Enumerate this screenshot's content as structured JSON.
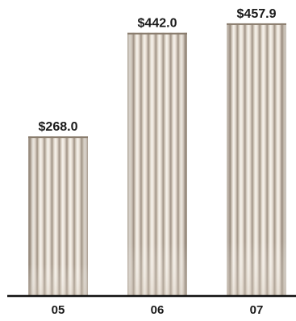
{
  "chart_data": {
    "type": "bar",
    "categories": [
      "05",
      "06",
      "07"
    ],
    "values": [
      268.0,
      442.0,
      457.9
    ],
    "value_labels": [
      "$268.0",
      "$442.0",
      "$457.9"
    ],
    "ylim": [
      0,
      470
    ],
    "title": "",
    "xlabel": "",
    "ylabel": "",
    "grid": false,
    "legend": "none",
    "colors": {
      "bar_light": "#f6f1ea",
      "bar_mid": "#d9cfc3",
      "bar_shadow": "#a89a8a",
      "bar_dark": "#8a7d6e",
      "axis": "#111111",
      "text": "#1a1a1a"
    }
  }
}
